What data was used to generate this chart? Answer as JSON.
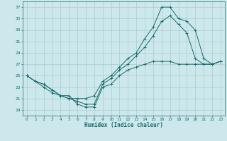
{
  "title": "",
  "xlabel": "Humidex (Indice chaleur)",
  "ylabel": "",
  "xlim": [
    -0.5,
    23.5
  ],
  "ylim": [
    18,
    38
  ],
  "yticks": [
    19,
    21,
    23,
    25,
    27,
    29,
    31,
    33,
    35,
    37
  ],
  "xticks": [
    0,
    1,
    2,
    3,
    4,
    5,
    6,
    7,
    8,
    9,
    10,
    11,
    12,
    13,
    14,
    15,
    16,
    17,
    18,
    19,
    20,
    21,
    22,
    23
  ],
  "bg_color": "#cce8ec",
  "grid_color": "#aacccc",
  "line_color": "#1a6b6b",
  "line1_y": [
    25,
    24,
    23.5,
    22.5,
    21.5,
    21.5,
    20,
    19.5,
    19.5,
    23,
    23.5,
    25,
    26,
    26.5,
    27,
    27.5,
    27.5,
    27.5,
    27,
    27,
    27,
    27,
    27,
    27.5
  ],
  "line2_y": [
    25,
    24,
    23,
    22,
    21.5,
    21,
    20.5,
    20,
    20,
    23.5,
    24.5,
    26,
    27,
    28.5,
    30,
    32,
    34.5,
    35.5,
    34,
    32.5,
    28,
    27,
    27,
    27.5
  ],
  "line3_y": [
    25,
    24,
    23.5,
    22.5,
    21.5,
    21,
    21,
    21,
    21.5,
    24,
    25,
    26.5,
    28,
    29,
    31.5,
    33.5,
    37,
    37,
    35,
    34.5,
    33,
    28,
    27,
    27.5
  ]
}
